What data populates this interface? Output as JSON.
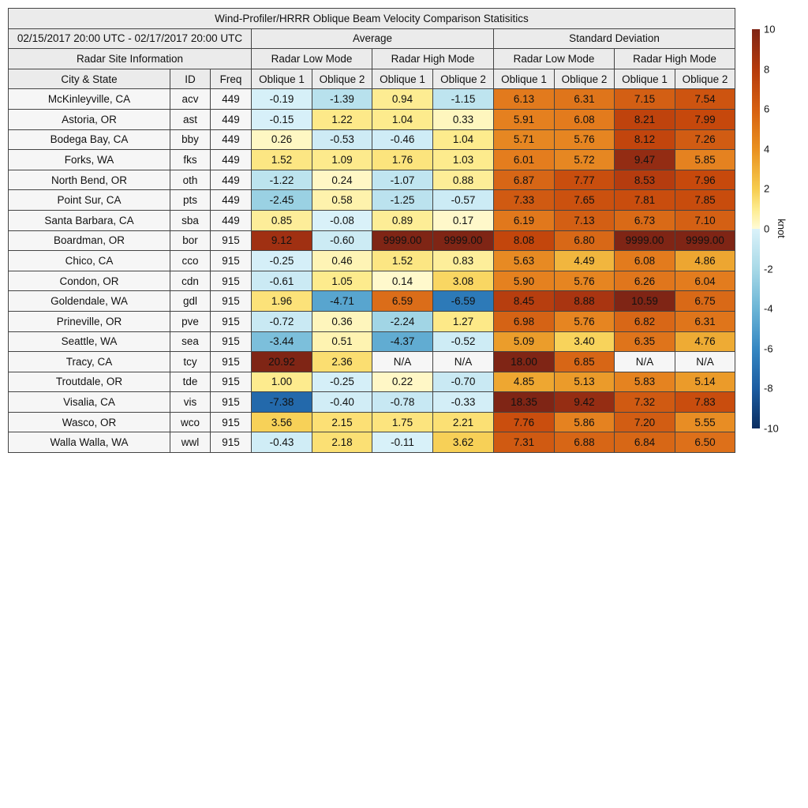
{
  "chart_data": {
    "type": "heatmap",
    "title": "Wind-Profiler/HRRR Oblique Beam Velocity Comparison Statisitics",
    "date_range": "02/15/2017 20:00 UTC - 02/17/2017 20:00 UTC",
    "groups": [
      "Average",
      "Standard Deviation"
    ],
    "site_info_label": "Radar Site Information",
    "modes": [
      "Radar Low Mode",
      "Radar High Mode"
    ],
    "info_columns": [
      "City & State",
      "ID",
      "Freq"
    ],
    "value_columns": [
      "Oblique 1",
      "Oblique 2"
    ],
    "colorbar": {
      "label": "knot",
      "range": [
        -10,
        10
      ],
      "ticks": [
        "10",
        "8",
        "6",
        "4",
        "2",
        "0",
        "-2",
        "-4",
        "-6",
        "-8",
        "-10"
      ],
      "low_color": "#0a2d60",
      "mid_color": "#fffbd6",
      "high_color": "#7f2515"
    },
    "rows": [
      {
        "city": "McKinleyville, CA",
        "id": "acv",
        "freq": "449",
        "values": [
          "-0.19",
          "-1.39",
          "0.94",
          "-1.15",
          "6.13",
          "6.31",
          "7.15",
          "7.54"
        ]
      },
      {
        "city": "Astoria, OR",
        "id": "ast",
        "freq": "449",
        "values": [
          "-0.15",
          "1.22",
          "1.04",
          "0.33",
          "5.91",
          "6.08",
          "8.21",
          "7.99"
        ]
      },
      {
        "city": "Bodega Bay, CA",
        "id": "bby",
        "freq": "449",
        "values": [
          "0.26",
          "-0.53",
          "-0.46",
          "1.04",
          "5.71",
          "5.76",
          "8.12",
          "7.26"
        ]
      },
      {
        "city": "Forks, WA",
        "id": "fks",
        "freq": "449",
        "values": [
          "1.52",
          "1.09",
          "1.76",
          "1.03",
          "6.01",
          "5.72",
          "9.47",
          "5.85"
        ]
      },
      {
        "city": "North Bend, OR",
        "id": "oth",
        "freq": "449",
        "values": [
          "-1.22",
          "0.24",
          "-1.07",
          "0.88",
          "6.87",
          "7.77",
          "8.53",
          "7.96"
        ]
      },
      {
        "city": "Point Sur, CA",
        "id": "pts",
        "freq": "449",
        "values": [
          "-2.45",
          "0.58",
          "-1.25",
          "-0.57",
          "7.33",
          "7.65",
          "7.81",
          "7.85"
        ]
      },
      {
        "city": "Santa Barbara, CA",
        "id": "sba",
        "freq": "449",
        "values": [
          "0.85",
          "-0.08",
          "0.89",
          "0.17",
          "6.19",
          "7.13",
          "6.73",
          "7.10"
        ]
      },
      {
        "city": "Boardman, OR",
        "id": "bor",
        "freq": "915",
        "values": [
          "9.12",
          "-0.60",
          "9999.00",
          "9999.00",
          "8.08",
          "6.80",
          "9999.00",
          "9999.00"
        ]
      },
      {
        "city": "Chico, CA",
        "id": "cco",
        "freq": "915",
        "values": [
          "-0.25",
          "0.46",
          "1.52",
          "0.83",
          "5.63",
          "4.49",
          "6.08",
          "4.86"
        ]
      },
      {
        "city": "Condon, OR",
        "id": "cdn",
        "freq": "915",
        "values": [
          "-0.61",
          "1.05",
          "0.14",
          "3.08",
          "5.90",
          "5.76",
          "6.26",
          "6.04"
        ]
      },
      {
        "city": "Goldendale, WA",
        "id": "gdl",
        "freq": "915",
        "values": [
          "1.96",
          "-4.71",
          "6.59",
          "-6.59",
          "8.45",
          "8.88",
          "10.59",
          "6.75"
        ]
      },
      {
        "city": "Prineville, OR",
        "id": "pve",
        "freq": "915",
        "values": [
          "-0.72",
          "0.36",
          "-2.24",
          "1.27",
          "6.98",
          "5.76",
          "6.82",
          "6.31"
        ]
      },
      {
        "city": "Seattle, WA",
        "id": "sea",
        "freq": "915",
        "values": [
          "-3.44",
          "0.51",
          "-4.37",
          "-0.52",
          "5.09",
          "3.40",
          "6.35",
          "4.76"
        ]
      },
      {
        "city": "Tracy, CA",
        "id": "tcy",
        "freq": "915",
        "values": [
          "20.92",
          "2.36",
          "N/A",
          "N/A",
          "18.00",
          "6.85",
          "N/A",
          "N/A"
        ]
      },
      {
        "city": "Troutdale, OR",
        "id": "tde",
        "freq": "915",
        "values": [
          "1.00",
          "-0.25",
          "0.22",
          "-0.70",
          "4.85",
          "5.13",
          "5.83",
          "5.14"
        ]
      },
      {
        "city": "Visalia, CA",
        "id": "vis",
        "freq": "915",
        "values": [
          "-7.38",
          "-0.40",
          "-0.78",
          "-0.33",
          "18.35",
          "9.42",
          "7.32",
          "7.83"
        ]
      },
      {
        "city": "Wasco, OR",
        "id": "wco",
        "freq": "915",
        "values": [
          "3.56",
          "2.15",
          "1.75",
          "2.21",
          "7.76",
          "5.86",
          "7.20",
          "5.55"
        ]
      },
      {
        "city": "Walla Walla, WA",
        "id": "wwl",
        "freq": "915",
        "values": [
          "-0.43",
          "2.18",
          "-0.11",
          "3.62",
          "7.31",
          "6.88",
          "6.84",
          "6.50"
        ]
      }
    ]
  }
}
